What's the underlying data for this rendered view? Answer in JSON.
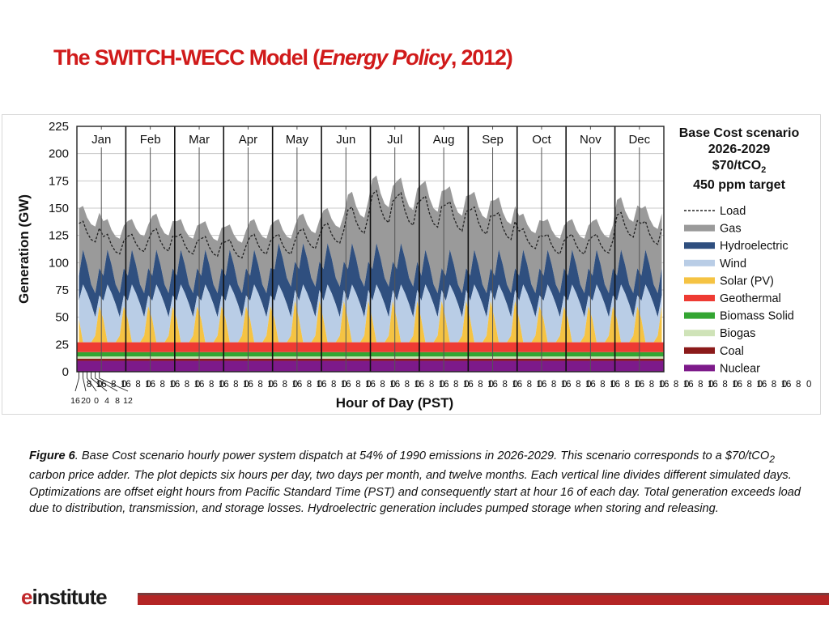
{
  "slide": {
    "title_main": "The SWITCH-WECC Model (",
    "title_italic": "Energy Policy",
    "title_end": ", 2012)"
  },
  "caption": {
    "label": "Figure 6",
    "text_1": ". Base Cost scenario hourly power system dispatch at 54% of 1990 emissions in 2026-2029. This scenario corresponds to a $70/tCO",
    "sub": "2",
    "text_2": " carbon price adder. The plot depicts six hours per day, two days per month, and twelve months. Each vertical line divides different simulated days. Optimizations are offset eight hours from Pacific Standard Time (PST) and consequently start at hour 16 of each day. Total generation exceeds load due to distribution, transmission, and storage losses. Hydroelectric generation includes pumped storage when storing and releasing."
  },
  "logo": {
    "mark": "e",
    "text": "institute"
  },
  "chart_data": {
    "type": "area",
    "stacked": true,
    "title_lines": [
      "Base Cost scenario",
      "2026-2029",
      "$70/tCO",
      "450 ppm target"
    ],
    "title_sub": "2",
    "ylabel": "Generation (GW)",
    "xlabel": "Hour of Day (PST)",
    "ylim": [
      0,
      225
    ],
    "yticks": [
      0,
      25,
      50,
      75,
      100,
      125,
      150,
      175,
      200,
      225
    ],
    "months": [
      "Jan",
      "Feb",
      "Mar",
      "Apr",
      "May",
      "Jun",
      "Jul",
      "Aug",
      "Sep",
      "Oct",
      "Nov",
      "Dec"
    ],
    "hours_per_day": [
      16,
      20,
      0,
      4,
      8,
      12
    ],
    "x_tick_labels": [
      "16",
      "8",
      "0",
      "16",
      "8",
      "0",
      "16",
      "8",
      "0",
      "16",
      "8",
      "0",
      "16",
      "8",
      "0",
      "16",
      "8",
      "0",
      "16",
      "8",
      "0",
      "16",
      "8",
      "0",
      "16",
      "8",
      "0",
      "16",
      "8",
      "0",
      "16",
      "8",
      "0",
      "16",
      "8",
      "0",
      "16",
      "8",
      "0",
      "16",
      "8",
      "0",
      "16",
      "8",
      "0",
      "16",
      "8",
      "0",
      "16",
      "8",
      "0",
      "16",
      "8",
      "0",
      "16",
      "8",
      "0",
      "16",
      "8",
      "0",
      "16",
      "8",
      "0",
      "16",
      "8",
      "0",
      "16",
      "8",
      "0",
      "16",
      "8",
      "0",
      "16",
      "8",
      "0",
      "16",
      "8",
      "0",
      "16",
      "8",
      "0",
      "16",
      "8",
      "0",
      "16",
      "8",
      "0",
      "16",
      "8",
      "0"
    ],
    "x_detail_labels": [
      "16",
      "20",
      "0",
      "4",
      "8",
      "12"
    ],
    "legend_position": "right",
    "grid": true,
    "series": [
      {
        "name": "Nuclear",
        "color": "#7d1a8a",
        "values_gw_constant": 10
      },
      {
        "name": "Coal",
        "color": "#8b1a1a",
        "values_gw_constant": 2
      },
      {
        "name": "Biogas",
        "color": "#cfe3b8",
        "values_gw_constant": 2
      },
      {
        "name": "Biomass Solid",
        "color": "#33a532",
        "values_gw_constant": 4
      },
      {
        "name": "Geothermal",
        "color": "#ee3b33",
        "values_gw_constant": 9
      },
      {
        "name": "Solar (PV)",
        "color": "#f5c343"
      },
      {
        "name": "Wind",
        "color": "#b9cde6"
      },
      {
        "name": "Hydroelectric",
        "color": "#2f4f7f"
      },
      {
        "name": "Gas",
        "color": "#9a9a9a"
      },
      {
        "name": "Load",
        "color": "#222222",
        "style": "dashed"
      }
    ],
    "day_profile_gw": {
      "note_hours": [
        16,
        20,
        0,
        4,
        8,
        12
      ],
      "solar_total": [
        48,
        27,
        27,
        27,
        33,
        60
      ],
      "wind_total": [
        65,
        80,
        72,
        62,
        50,
        68
      ],
      "hydro_total": [
        88,
        112,
        98,
        80,
        72,
        95
      ]
    },
    "monthly_peak_gw": {
      "Jan": [
        152,
        140
      ],
      "Feb": [
        140,
        145
      ],
      "Mar": [
        140,
        138
      ],
      "Apr": [
        135,
        140
      ],
      "May": [
        140,
        145
      ],
      "Jun": [
        150,
        165
      ],
      "Jul": [
        180,
        178
      ],
      "Aug": [
        175,
        170
      ],
      "Sep": [
        165,
        160
      ],
      "Oct": [
        145,
        140
      ],
      "Nov": [
        140,
        140
      ],
      "Dec": [
        160,
        152
      ]
    },
    "monthly_low_gw": {
      "Jan": [
        110,
        100
      ],
      "Feb": [
        105,
        100
      ],
      "Mar": [
        100,
        98
      ],
      "Apr": [
        98,
        100
      ],
      "May": [
        100,
        105
      ],
      "Jun": [
        110,
        112
      ],
      "Jul": [
        115,
        112
      ],
      "Aug": [
        112,
        110
      ],
      "Sep": [
        110,
        105
      ],
      "Oct": [
        105,
        100
      ],
      "Nov": [
        100,
        102
      ],
      "Dec": [
        110,
        105
      ]
    }
  }
}
